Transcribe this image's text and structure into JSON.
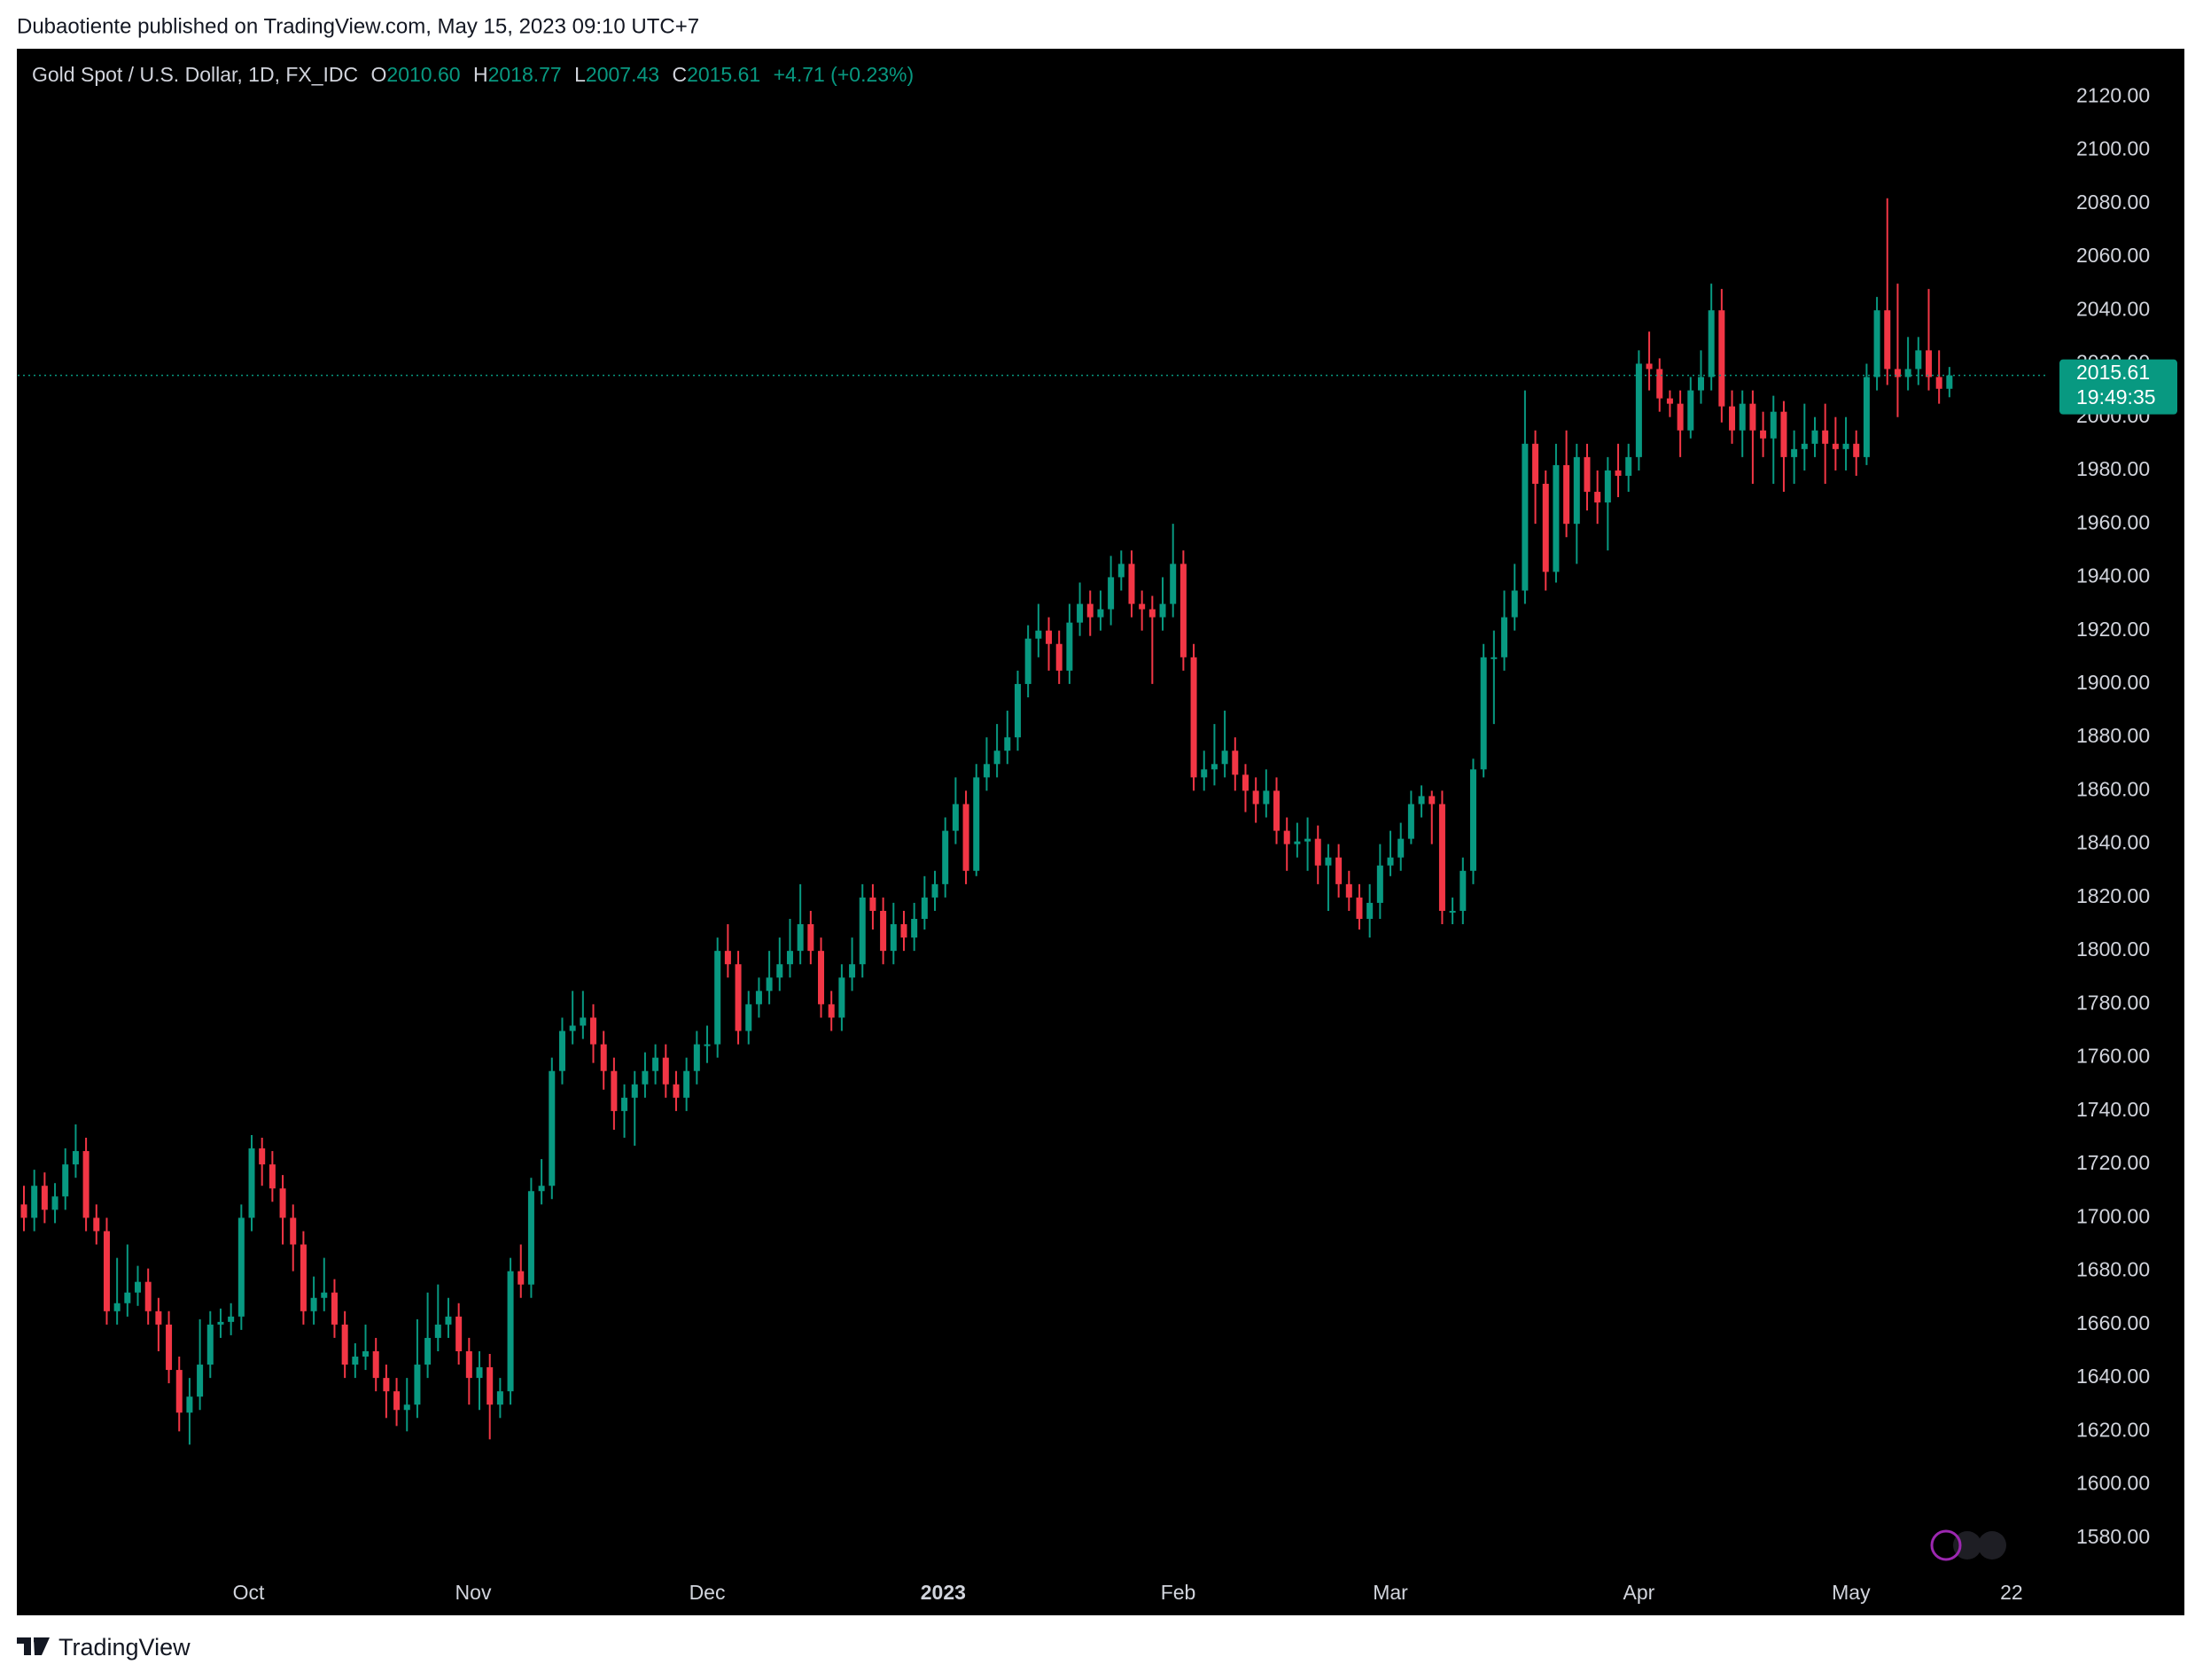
{
  "header": {
    "publisher": "Dubaotiente published on TradingView.com, May 15, 2023 09:10 UTC+7"
  },
  "legend": {
    "title": "Gold Spot / U.S. Dollar, 1D, FX_IDC",
    "open_label": "O",
    "open": "2010.60",
    "high_label": "H",
    "high": "2018.77",
    "low_label": "L",
    "low": "2007.43",
    "close_label": "C",
    "close": "2015.61",
    "change": "+4.71 (+0.23%)"
  },
  "price_tag": {
    "countdown": "19:49:35"
  },
  "footer": {
    "brand": "TradingView"
  },
  "chart_data": {
    "type": "candlestick",
    "up_color": "#089981",
    "down_color": "#f23645",
    "open": [
      1705,
      1700,
      1712,
      1703,
      1708,
      1720,
      1725,
      1700,
      1695,
      1665,
      1668,
      1672,
      1676,
      1665,
      1660,
      1643,
      1627,
      1633,
      1645,
      1660,
      1661,
      1663,
      1700,
      1726,
      1720,
      1711,
      1700,
      1690,
      1665,
      1670,
      1672,
      1660,
      1645,
      1648,
      1650,
      1640,
      1635,
      1628,
      1630,
      1645,
      1655,
      1660,
      1663,
      1650,
      1640,
      1644,
      1630,
      1635,
      1680,
      1675,
      1710,
      1712,
      1755,
      1770,
      1772,
      1775,
      1765,
      1755,
      1740,
      1745,
      1750,
      1755,
      1760,
      1750,
      1745,
      1755,
      1765,
      1765,
      1800,
      1795,
      1770,
      1780,
      1785,
      1790,
      1795,
      1800,
      1810,
      1800,
      1780,
      1775,
      1790,
      1795,
      1820,
      1815,
      1800,
      1810,
      1805,
      1812,
      1820,
      1825,
      1845,
      1855,
      1830,
      1865,
      1870,
      1875,
      1880,
      1900,
      1917,
      1920,
      1915,
      1905,
      1923,
      1930,
      1925,
      1928,
      1940,
      1945,
      1930,
      1928,
      1925,
      1930,
      1945,
      1910,
      1865,
      1868,
      1870,
      1875,
      1866,
      1860,
      1855,
      1860,
      1845,
      1840,
      1841,
      1842,
      1832,
      1835,
      1825,
      1820,
      1812,
      1818,
      1832,
      1835,
      1842,
      1855,
      1858,
      1855,
      1815,
      1815,
      1830,
      1868,
      1910,
      1910,
      1925,
      1935,
      1990,
      1975,
      1942,
      1982,
      1960,
      1985,
      1972,
      1968,
      1980,
      1978,
      1985,
      2020,
      2018,
      2007,
      2005,
      1995,
      2010,
      2015,
      2040,
      2004,
      1995,
      2005,
      1995,
      1992,
      2002,
      1985,
      1988,
      1990,
      1995,
      1990,
      1988,
      1990,
      1985,
      2015,
      2040,
      2018,
      2015,
      2018,
      2025,
      2015,
      2010.6
    ],
    "high": [
      1712,
      1718,
      1717,
      1713,
      1726,
      1735,
      1730,
      1705,
      1700,
      1685,
      1690,
      1682,
      1681,
      1670,
      1665,
      1648,
      1640,
      1662,
      1665,
      1666,
      1668,
      1705,
      1731,
      1730,
      1725,
      1716,
      1705,
      1695,
      1678,
      1685,
      1677,
      1665,
      1653,
      1660,
      1655,
      1645,
      1640,
      1640,
      1662,
      1672,
      1675,
      1670,
      1668,
      1655,
      1650,
      1649,
      1640,
      1685,
      1690,
      1715,
      1722,
      1760,
      1775,
      1785,
      1785,
      1780,
      1770,
      1760,
      1750,
      1755,
      1762,
      1765,
      1765,
      1755,
      1760,
      1770,
      1772,
      1805,
      1810,
      1800,
      1785,
      1790,
      1800,
      1805,
      1812,
      1825,
      1815,
      1805,
      1785,
      1795,
      1805,
      1825,
      1825,
      1820,
      1818,
      1815,
      1818,
      1828,
      1830,
      1850,
      1865,
      1860,
      1870,
      1880,
      1885,
      1890,
      1905,
      1922,
      1930,
      1925,
      1920,
      1930,
      1938,
      1935,
      1935,
      1948,
      1950,
      1950,
      1935,
      1933,
      1940,
      1960,
      1950,
      1915,
      1875,
      1885,
      1890,
      1880,
      1870,
      1865,
      1868,
      1865,
      1850,
      1848,
      1850,
      1847,
      1840,
      1840,
      1830,
      1825,
      1825,
      1840,
      1845,
      1848,
      1860,
      1862,
      1860,
      1860,
      1820,
      1835,
      1872,
      1915,
      1920,
      1935,
      1945,
      2010,
      1995,
      1980,
      1990,
      1995,
      1990,
      1990,
      1980,
      1985,
      1990,
      1990,
      2025,
      2032,
      2022,
      2010,
      2010,
      2015,
      2025,
      2050,
      2048,
      2010,
      2010,
      2010,
      2002,
      2008,
      2006,
      1995,
      2005,
      2000,
      2005,
      2000,
      2000,
      1995,
      2020,
      2045,
      2082,
      2050,
      2030,
      2030,
      2048,
      2025,
      2018.77
    ],
    "low": [
      1695,
      1695,
      1698,
      1698,
      1703,
      1715,
      1695,
      1690,
      1660,
      1660,
      1663,
      1667,
      1660,
      1650,
      1638,
      1620,
      1615,
      1628,
      1640,
      1655,
      1656,
      1658,
      1695,
      1712,
      1706,
      1690,
      1680,
      1660,
      1660,
      1665,
      1655,
      1640,
      1640,
      1643,
      1635,
      1625,
      1622,
      1620,
      1625,
      1640,
      1650,
      1655,
      1645,
      1630,
      1628,
      1617,
      1625,
      1630,
      1670,
      1670,
      1705,
      1707,
      1750,
      1765,
      1767,
      1758,
      1748,
      1733,
      1730,
      1727,
      1745,
      1750,
      1745,
      1740,
      1740,
      1750,
      1758,
      1760,
      1790,
      1765,
      1765,
      1775,
      1780,
      1785,
      1790,
      1795,
      1795,
      1775,
      1770,
      1770,
      1785,
      1790,
      1808,
      1795,
      1795,
      1800,
      1800,
      1808,
      1815,
      1820,
      1840,
      1825,
      1828,
      1860,
      1865,
      1870,
      1875,
      1895,
      1910,
      1905,
      1900,
      1900,
      1918,
      1918,
      1920,
      1922,
      1935,
      1925,
      1920,
      1900,
      1920,
      1925,
      1905,
      1860,
      1860,
      1862,
      1865,
      1860,
      1852,
      1848,
      1850,
      1840,
      1830,
      1835,
      1830,
      1825,
      1815,
      1820,
      1815,
      1808,
      1805,
      1812,
      1828,
      1830,
      1840,
      1850,
      1840,
      1810,
      1810,
      1810,
      1825,
      1865,
      1885,
      1905,
      1920,
      1930,
      1960,
      1935,
      1938,
      1955,
      1945,
      1965,
      1960,
      1950,
      1970,
      1972,
      1980,
      2010,
      2002,
      2000,
      1985,
      1992,
      2005,
      2010,
      1998,
      1990,
      1985,
      1975,
      1985,
      1975,
      1972,
      1975,
      1980,
      1985,
      1975,
      1980,
      1980,
      1978,
      1982,
      2010,
      2012,
      2000,
      2010,
      2012,
      2010,
      2005,
      2007.43
    ],
    "close": [
      1700,
      1712,
      1703,
      1708,
      1720,
      1725,
      1700,
      1695,
      1665,
      1668,
      1672,
      1676,
      1665,
      1660,
      1643,
      1627,
      1633,
      1645,
      1660,
      1661,
      1663,
      1700,
      1726,
      1720,
      1711,
      1700,
      1690,
      1665,
      1670,
      1672,
      1660,
      1645,
      1648,
      1650,
      1640,
      1635,
      1628,
      1630,
      1645,
      1655,
      1660,
      1663,
      1650,
      1640,
      1644,
      1630,
      1635,
      1680,
      1675,
      1710,
      1712,
      1755,
      1770,
      1772,
      1775,
      1765,
      1755,
      1740,
      1745,
      1750,
      1755,
      1760,
      1750,
      1745,
      1755,
      1765,
      1765,
      1800,
      1795,
      1770,
      1780,
      1785,
      1790,
      1795,
      1800,
      1810,
      1800,
      1780,
      1775,
      1790,
      1795,
      1820,
      1815,
      1800,
      1810,
      1805,
      1812,
      1820,
      1825,
      1845,
      1855,
      1830,
      1865,
      1870,
      1875,
      1880,
      1900,
      1917,
      1920,
      1915,
      1905,
      1923,
      1930,
      1925,
      1928,
      1940,
      1945,
      1930,
      1928,
      1925,
      1930,
      1945,
      1910,
      1865,
      1868,
      1870,
      1875,
      1866,
      1860,
      1855,
      1860,
      1845,
      1840,
      1841,
      1842,
      1832,
      1835,
      1825,
      1820,
      1812,
      1818,
      1832,
      1835,
      1842,
      1855,
      1858,
      1855,
      1815,
      1815,
      1830,
      1868,
      1910,
      1910,
      1925,
      1935,
      1990,
      1975,
      1942,
      1982,
      1960,
      1985,
      1972,
      1968,
      1980,
      1978,
      1985,
      2020,
      2018,
      2007,
      2005,
      1995,
      2010,
      2015,
      2040,
      2004,
      1995,
      2005,
      1995,
      1992,
      2002,
      1985,
      1988,
      1990,
      1995,
      1990,
      1988,
      1990,
      1985,
      2015,
      2040,
      2018,
      2015,
      2018,
      2025,
      2015,
      2010.6,
      2015.61
    ],
    "xlim": [
      -0.6,
      195.6
    ],
    "xticks": [
      {
        "value": 21.7,
        "label": "Oct"
      },
      {
        "value": 43.4,
        "label": "Nov"
      },
      {
        "value": 66,
        "label": "Dec"
      },
      {
        "value": 88.8,
        "label": "2023"
      },
      {
        "value": 111.5,
        "label": "Feb"
      },
      {
        "value": 132,
        "label": "Mar"
      },
      {
        "value": 156,
        "label": "Apr"
      },
      {
        "value": 176.5,
        "label": "May"
      },
      {
        "value": 192,
        "label": "22"
      }
    ],
    "ylim": [
      1568,
      2138
    ],
    "yticks": [
      {
        "value": 1580,
        "label": "1580.00"
      },
      {
        "value": 1600,
        "label": "1600.00"
      },
      {
        "value": 1620,
        "label": "1620.00"
      },
      {
        "value": 1640,
        "label": "1640.00"
      },
      {
        "value": 1660,
        "label": "1660.00"
      },
      {
        "value": 1680,
        "label": "1680.00"
      },
      {
        "value": 1700,
        "label": "1700.00"
      },
      {
        "value": 1720,
        "label": "1720.00"
      },
      {
        "value": 1740,
        "label": "1740.00"
      },
      {
        "value": 1760,
        "label": "1760.00"
      },
      {
        "value": 1780,
        "label": "1780.00"
      },
      {
        "value": 1800,
        "label": "1800.00"
      },
      {
        "value": 1820,
        "label": "1820.00"
      },
      {
        "value": 1840,
        "label": "1840.00"
      },
      {
        "value": 1860,
        "label": "1860.00"
      },
      {
        "value": 1880,
        "label": "1880.00"
      },
      {
        "value": 1900,
        "label": "1900.00"
      },
      {
        "value": 1920,
        "label": "1920.00"
      },
      {
        "value": 1940,
        "label": "1940.00"
      },
      {
        "value": 1960,
        "label": "1960.00"
      },
      {
        "value": 1980,
        "label": "1980.00"
      },
      {
        "value": 2000,
        "label": "2000.00"
      },
      {
        "value": 2020,
        "label": "2020.00"
      },
      {
        "value": 2040,
        "label": "2040.00"
      },
      {
        "value": 2060,
        "label": "2060.00"
      },
      {
        "value": 2080,
        "label": "2080.00"
      },
      {
        "value": 2100,
        "label": "2100.00"
      },
      {
        "value": 2120,
        "label": "2120.00"
      }
    ],
    "grid": false
  }
}
